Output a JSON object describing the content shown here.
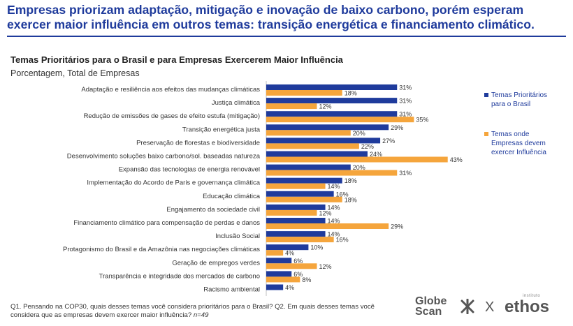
{
  "headline": "Empresas priorizam adaptação, mitigação e inovação de baixo carbono, porém esperam exercer maior influência em outros temas: transição energética e financiamento climático.",
  "chart_data": {
    "type": "bar",
    "orientation": "horizontal",
    "title": "Temas Prioritários para o Brasil e para Empresas Exercerem Maior Influência",
    "subtitle": "Porcentagem, Total de Empresas",
    "value_suffix": "%",
    "xlim": [
      0,
      45
    ],
    "categories": [
      "Adaptação e resiliência aos efeitos das mudanças climáticas",
      "Justiça climática",
      "Redução de emissões de gases de efeito estufa (mitigação)",
      "Transição energética justa",
      "Preservação de florestas e biodiversidade",
      "Desenvolvimento soluções baixo carbono/sol. baseadas natureza",
      "Expansão das tecnologias de energia renovável",
      "Implementação do Acordo de Paris e governança climática",
      "Educação climática",
      "Engajamento da sociedade civil",
      "Financiamento climático para compensação de perdas e danos",
      "Inclusão Social",
      "Protagonismo do Brasil e da Amazônia nas negociações climáticas",
      "Geração de empregos verdes",
      "Transparência e integridade dos mercados de carbono",
      "Racismo ambiental"
    ],
    "series": [
      {
        "name": "Temas Prioritários para o Brasil",
        "color": "#1f3b9c",
        "values": [
          31,
          31,
          31,
          29,
          27,
          24,
          20,
          18,
          16,
          14,
          14,
          14,
          10,
          6,
          6,
          4
        ]
      },
      {
        "name": "Temas onde Empresas devem exercer Influência",
        "color": "#f5a53c",
        "values": [
          18,
          12,
          35,
          20,
          22,
          43,
          31,
          14,
          18,
          12,
          29,
          16,
          4,
          12,
          8,
          null
        ]
      }
    ]
  },
  "legend": {
    "series_a": "Temas Prioritários para o Brasil",
    "series_b": "Temas onde Empresas devem exercer Influência"
  },
  "footnote": {
    "text": "Q1. Pensando na COP30, quais desses temas você considera prioritários para o Brasil? Q2. Em quais desses temas você considera que as empresas devem exercer maior influência? ",
    "n": "n=49"
  },
  "logos": {
    "globescan": "Globe Scan",
    "x": "X",
    "institute": "instituto",
    "ethos": "ethos"
  }
}
